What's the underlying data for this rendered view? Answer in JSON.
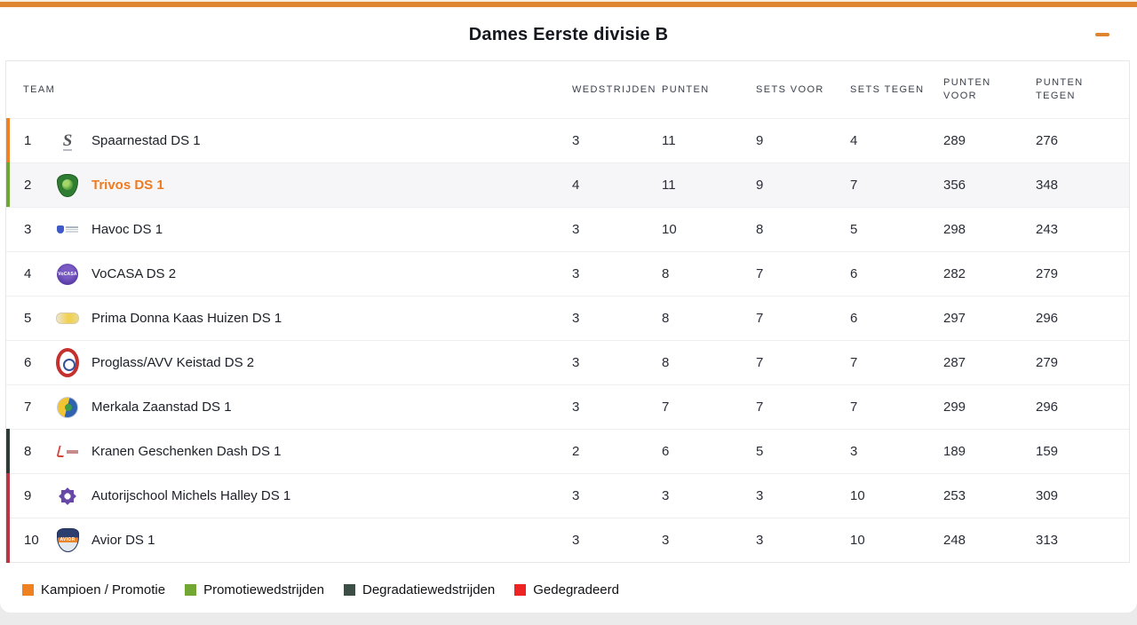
{
  "header": {
    "title": "Dames Eerste divisie B",
    "collapse_icon": "minus",
    "accent_color": "#e0852f"
  },
  "table": {
    "columns": [
      "Team",
      "Wedstrijden",
      "Punten",
      "Sets voor",
      "Sets tegen",
      "Punten voor",
      "Punten tegen"
    ],
    "rows": [
      {
        "pos": "1",
        "team": "Spaarnestad DS 1",
        "logo": "spaarnestad-logo",
        "wedstrijden": "3",
        "punten": "11",
        "sets_voor": "9",
        "sets_tegen": "4",
        "punten_voor": "289",
        "punten_tegen": "276",
        "indicator": "kampioen-promotie",
        "indicator_color": "#ef8223"
      },
      {
        "pos": "2",
        "team": "Trivos DS 1",
        "logo": "trivos-logo",
        "wedstrijden": "4",
        "punten": "11",
        "sets_voor": "9",
        "sets_tegen": "7",
        "punten_voor": "356",
        "punten_tegen": "348",
        "indicator": "promotiewedstrijden",
        "indicator_color": "#6fa735",
        "highlighted": true
      },
      {
        "pos": "3",
        "team": "Havoc DS 1",
        "logo": "havoc-logo",
        "wedstrijden": "3",
        "punten": "10",
        "sets_voor": "8",
        "sets_tegen": "5",
        "punten_voor": "298",
        "punten_tegen": "243"
      },
      {
        "pos": "4",
        "team": "VoCASA DS 2",
        "logo": "vocasa-logo",
        "wedstrijden": "3",
        "punten": "8",
        "sets_voor": "7",
        "sets_tegen": "6",
        "punten_voor": "282",
        "punten_tegen": "279"
      },
      {
        "pos": "5",
        "team": "Prima Donna Kaas Huizen DS 1",
        "logo": "prima-donna-logo",
        "wedstrijden": "3",
        "punten": "8",
        "sets_voor": "7",
        "sets_tegen": "6",
        "punten_voor": "297",
        "punten_tegen": "296"
      },
      {
        "pos": "6",
        "team": "Proglass/AVV Keistad DS 2",
        "logo": "keistad-logo",
        "wedstrijden": "3",
        "punten": "8",
        "sets_voor": "7",
        "sets_tegen": "7",
        "punten_voor": "287",
        "punten_tegen": "279"
      },
      {
        "pos": "7",
        "team": "Merkala Zaanstad DS 1",
        "logo": "zaanstad-logo",
        "wedstrijden": "3",
        "punten": "7",
        "sets_voor": "7",
        "sets_tegen": "7",
        "punten_voor": "299",
        "punten_tegen": "296"
      },
      {
        "pos": "8",
        "team": "Kranen Geschenken Dash DS 1",
        "logo": "dash-logo",
        "wedstrijden": "2",
        "punten": "6",
        "sets_voor": "5",
        "sets_tegen": "3",
        "punten_voor": "189",
        "punten_tegen": "159",
        "indicator": "degradatiewedstrijden",
        "indicator_color": "#2e3a35"
      },
      {
        "pos": "9",
        "team": "Autorijschool Michels Halley DS 1",
        "logo": "halley-logo",
        "wedstrijden": "3",
        "punten": "3",
        "sets_voor": "3",
        "sets_tegen": "10",
        "punten_voor": "253",
        "punten_tegen": "309",
        "indicator": "gedegradeerd",
        "indicator_color": "#bb3545"
      },
      {
        "pos": "10",
        "team": "Avior DS 1",
        "logo": "avior-logo",
        "wedstrijden": "3",
        "punten": "3",
        "sets_voor": "3",
        "sets_tegen": "10",
        "punten_voor": "248",
        "punten_tegen": "313",
        "indicator": "gedegradeerd",
        "indicator_color": "#bb3545"
      }
    ]
  },
  "legend": {
    "items": [
      {
        "label": "Kampioen / Promotie",
        "color": "#f08121"
      },
      {
        "label": "Promotiewedstrijden",
        "color": "#72a733"
      },
      {
        "label": "Degradatiewedstrijden",
        "color": "#3c4f47"
      },
      {
        "label": "Gedegradeerd",
        "color": "#ee2424"
      }
    ]
  }
}
